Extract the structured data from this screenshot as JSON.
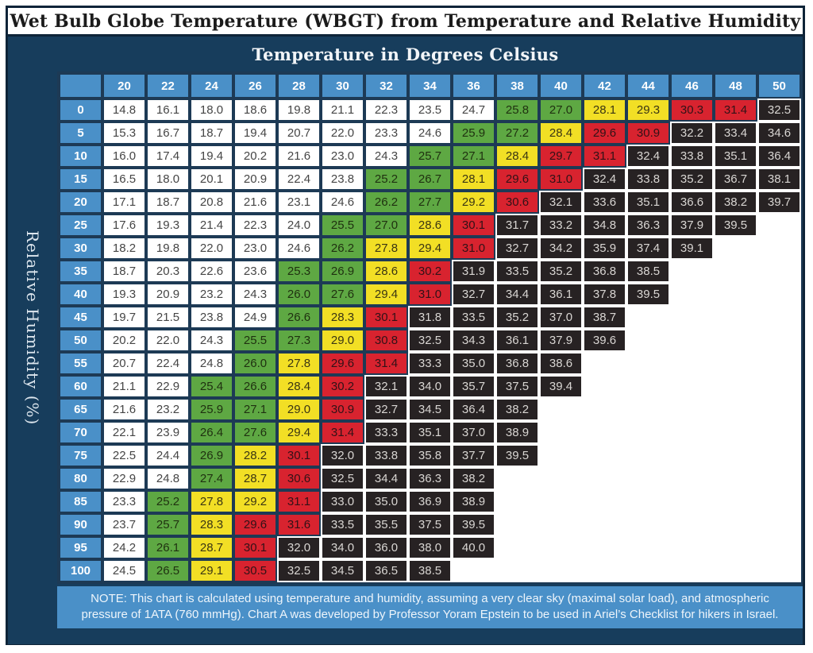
{
  "title": "Wet Bulb Globe Temperature (WBGT) from Temperature and Relative Humidity",
  "table_header": "Temperature in Degrees Celsius",
  "y_axis_label": "Relative Humidity (%)",
  "note": "NOTE: This chart is calculated using temperature and humidity, assuming a very clear sky (maximal solar load), and atmospheric pressure of 1ATA (760 mmHg). Chart A was developed by Professor Yoram Epstein to be used in Ariel’s Checklist for hikers in Israel.",
  "colors": {
    "frame": "#0e2438",
    "navy": "#173d5c",
    "blue": "#4a90c8",
    "gridline": "#1d3a55",
    "white": "#ffffff",
    "green": "#5ea843",
    "yellow": "#f2df25",
    "red": "#d8232f",
    "black": "#272223"
  },
  "chart_data": {
    "type": "heatmap",
    "title": "Wet Bulb Globe Temperature (WBGT) from Temperature and Relative Humidity",
    "xlabel": "Temperature in Degrees Celsius",
    "ylabel": "Relative Humidity (%)",
    "columns": [
      20,
      22,
      24,
      26,
      28,
      30,
      32,
      34,
      36,
      38,
      40,
      42,
      44,
      46,
      48,
      50
    ],
    "rows": [
      0,
      5,
      10,
      15,
      20,
      25,
      30,
      35,
      40,
      45,
      50,
      55,
      60,
      65,
      70,
      75,
      80,
      85,
      90,
      95,
      100
    ],
    "values": [
      [
        14.8,
        16.1,
        18.0,
        18.6,
        19.8,
        21.1,
        22.3,
        23.5,
        24.7,
        25.8,
        27.0,
        28.1,
        29.3,
        30.3,
        31.4,
        32.5
      ],
      [
        15.3,
        16.7,
        18.7,
        19.4,
        20.7,
        22.0,
        23.3,
        24.6,
        25.9,
        27.2,
        28.4,
        29.6,
        30.9,
        32.2,
        33.4,
        34.6
      ],
      [
        16.0,
        17.4,
        19.4,
        20.2,
        21.6,
        23.0,
        24.3,
        25.7,
        27.1,
        28.4,
        29.7,
        31.1,
        32.4,
        33.8,
        35.1,
        36.4
      ],
      [
        16.5,
        18.0,
        20.1,
        20.9,
        22.4,
        23.8,
        25.2,
        26.7,
        28.1,
        29.6,
        31.0,
        32.4,
        33.8,
        35.2,
        36.7,
        38.1
      ],
      [
        17.1,
        18.7,
        20.8,
        21.6,
        23.1,
        24.6,
        26.2,
        27.7,
        29.2,
        30.6,
        32.1,
        33.6,
        35.1,
        36.6,
        38.2,
        39.7
      ],
      [
        17.6,
        19.3,
        21.4,
        22.3,
        24.0,
        25.5,
        27.0,
        28.6,
        30.1,
        31.7,
        33.2,
        34.8,
        36.3,
        37.9,
        39.5
      ],
      [
        18.2,
        19.8,
        22.0,
        23.0,
        24.6,
        26.2,
        27.8,
        29.4,
        31.0,
        32.7,
        34.2,
        35.9,
        37.4,
        39.1
      ],
      [
        18.7,
        20.3,
        22.6,
        23.6,
        25.3,
        26.9,
        28.6,
        30.2,
        31.9,
        33.5,
        35.2,
        36.8,
        38.5
      ],
      [
        19.3,
        20.9,
        23.2,
        24.3,
        26.0,
        27.6,
        29.4,
        31.0,
        32.7,
        34.4,
        36.1,
        37.8,
        39.5
      ],
      [
        19.7,
        21.5,
        23.8,
        24.9,
        26.6,
        28.3,
        30.1,
        31.8,
        33.5,
        35.2,
        37.0,
        38.7
      ],
      [
        20.2,
        22.0,
        24.3,
        25.5,
        27.3,
        29.0,
        30.8,
        32.5,
        34.3,
        36.1,
        37.9,
        39.6
      ],
      [
        20.7,
        22.4,
        24.8,
        26.0,
        27.8,
        29.6,
        31.4,
        33.3,
        35.0,
        36.8,
        38.6
      ],
      [
        21.1,
        22.9,
        25.4,
        26.6,
        28.4,
        30.2,
        32.1,
        34.0,
        35.7,
        37.5,
        39.4
      ],
      [
        21.6,
        23.2,
        25.9,
        27.1,
        29.0,
        30.9,
        32.7,
        34.5,
        36.4,
        38.2
      ],
      [
        22.1,
        23.9,
        26.4,
        27.6,
        29.4,
        31.4,
        33.3,
        35.1,
        37.0,
        38.9
      ],
      [
        22.5,
        24.4,
        26.9,
        28.2,
        30.1,
        32.0,
        33.8,
        35.8,
        37.7,
        39.5
      ],
      [
        22.9,
        24.8,
        27.4,
        28.7,
        30.6,
        32.5,
        34.4,
        36.3,
        38.2
      ],
      [
        23.3,
        25.2,
        27.8,
        29.2,
        31.1,
        33.0,
        35.0,
        36.9,
        38.9
      ],
      [
        23.7,
        25.7,
        28.3,
        29.6,
        31.6,
        33.5,
        35.5,
        37.5,
        39.5
      ],
      [
        24.2,
        26.1,
        28.7,
        30.1,
        32.0,
        34.0,
        36.0,
        38.0,
        40.0
      ],
      [
        24.5,
        26.5,
        29.1,
        30.5,
        32.5,
        34.5,
        36.5,
        38.5
      ]
    ],
    "color_scale": [
      {
        "label": "white",
        "color": "#ffffff",
        "wbgt_max": 24.9
      },
      {
        "label": "green",
        "color": "#5ea843",
        "wbgt_max": 27.7
      },
      {
        "label": "yellow",
        "color": "#f2df25",
        "wbgt_max": 29.4
      },
      {
        "label": "red",
        "color": "#d8232f",
        "wbgt_max": 31.6
      },
      {
        "label": "black",
        "color": "#272223",
        "wbgt_max": null
      }
    ],
    "legend_position": "none",
    "grid": true
  }
}
